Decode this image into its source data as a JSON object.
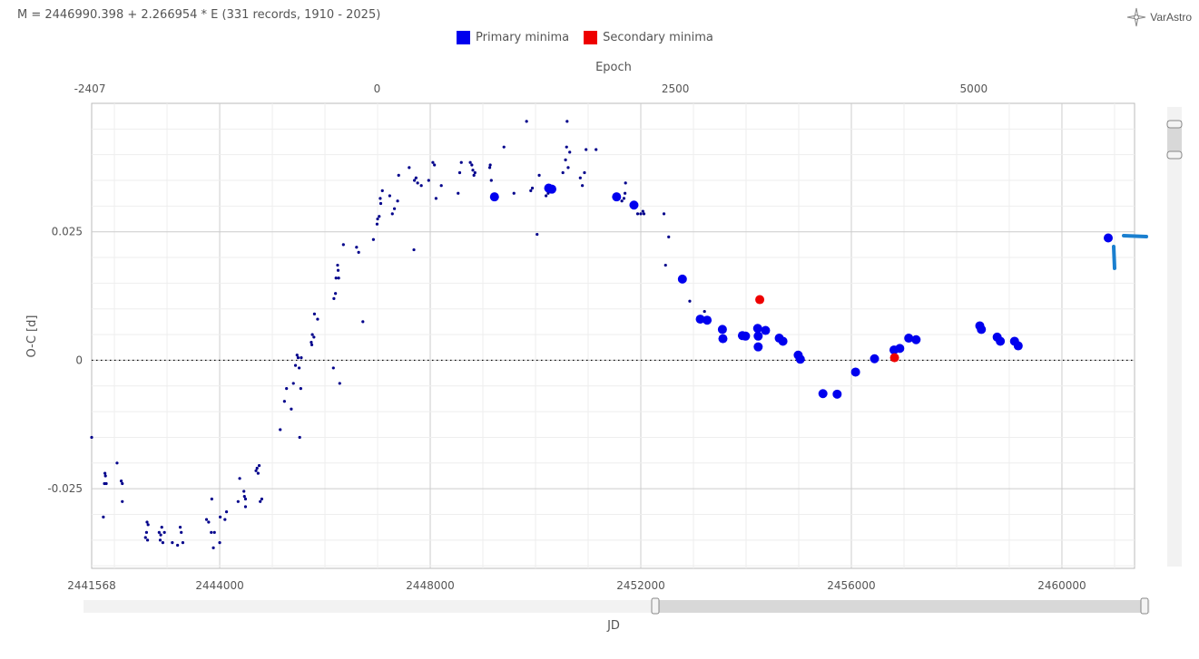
{
  "header": {
    "formula": "M = 2446990.398 + 2.266954 * E (331 records, 1910 - 2025)",
    "logo_text": "VarAstro"
  },
  "legend": [
    {
      "label": "Primary minima",
      "color": "#0000ee"
    },
    {
      "label": "Secondary minima",
      "color": "#ee0000"
    }
  ],
  "chart_data": {
    "type": "scatter",
    "xlabel": "JD",
    "ylabel": "O-C [d]",
    "x2label": "Epoch",
    "xlim": [
      2441568,
      2461380
    ],
    "ylim": [
      -0.0405,
      0.05
    ],
    "x_ticks": [
      2441568,
      2444000,
      2448000,
      2452000,
      2456000,
      2460000
    ],
    "y_ticks": [
      0.025,
      0,
      -0.025
    ],
    "epoch_ticks": [
      -2407,
      0,
      2500,
      5000
    ],
    "zero_line": true,
    "grid": true,
    "series": [
      {
        "name": "Primary minima",
        "color": "#0000ee",
        "small_points": [
          [
            2441568,
            -0.015
          ],
          [
            2441790,
            -0.0305
          ],
          [
            2441810,
            -0.024
          ],
          [
            2441820,
            -0.022
          ],
          [
            2441830,
            -0.0225
          ],
          [
            2441845,
            -0.024
          ],
          [
            2442050,
            -0.02
          ],
          [
            2442130,
            -0.0235
          ],
          [
            2442150,
            -0.024
          ],
          [
            2442150,
            -0.0275
          ],
          [
            2442590,
            -0.0345
          ],
          [
            2442610,
            -0.0335
          ],
          [
            2442620,
            -0.0315
          ],
          [
            2442630,
            -0.035
          ],
          [
            2442640,
            -0.032
          ],
          [
            2442850,
            -0.0335
          ],
          [
            2442870,
            -0.035
          ],
          [
            2442880,
            -0.034
          ],
          [
            2442900,
            -0.0325
          ],
          [
            2442920,
            -0.0355
          ],
          [
            2442950,
            -0.0335
          ],
          [
            2443100,
            -0.0355
          ],
          [
            2443200,
            -0.036
          ],
          [
            2443250,
            -0.0325
          ],
          [
            2443270,
            -0.0335
          ],
          [
            2443300,
            -0.0355
          ],
          [
            2443750,
            -0.031
          ],
          [
            2443790,
            -0.0315
          ],
          [
            2443840,
            -0.0335
          ],
          [
            2443850,
            -0.027
          ],
          [
            2443880,
            -0.0365
          ],
          [
            2443900,
            -0.0335
          ],
          [
            2444000,
            -0.0355
          ],
          [
            2444010,
            -0.0305
          ],
          [
            2444100,
            -0.031
          ],
          [
            2444130,
            -0.0295
          ],
          [
            2444350,
            -0.0275
          ],
          [
            2444380,
            -0.023
          ],
          [
            2444460,
            -0.0255
          ],
          [
            2444470,
            -0.0265
          ],
          [
            2444490,
            -0.027
          ],
          [
            2444490,
            -0.0285
          ],
          [
            2444690,
            -0.0215
          ],
          [
            2444710,
            -0.021
          ],
          [
            2444730,
            -0.022
          ],
          [
            2444750,
            -0.0205
          ],
          [
            2444770,
            -0.0275
          ],
          [
            2444800,
            -0.027
          ],
          [
            2445150,
            -0.0135
          ],
          [
            2445230,
            -0.008
          ],
          [
            2445270,
            -0.0055
          ],
          [
            2445360,
            -0.0095
          ],
          [
            2445400,
            -0.0045
          ],
          [
            2445440,
            -0.001
          ],
          [
            2445470,
            0.001
          ],
          [
            2445490,
            0.0005
          ],
          [
            2445510,
            -0.0015
          ],
          [
            2445520,
            -0.015
          ],
          [
            2445540,
            -0.0055
          ],
          [
            2445550,
            0.0005
          ],
          [
            2445740,
            0.0035
          ],
          [
            2445750,
            0.003
          ],
          [
            2445760,
            0.005
          ],
          [
            2445790,
            0.0045
          ],
          [
            2445800,
            0.009
          ],
          [
            2445860,
            0.008
          ],
          [
            2446160,
            -0.0015
          ],
          [
            2446170,
            0.012
          ],
          [
            2446200,
            0.013
          ],
          [
            2446210,
            0.016
          ],
          [
            2446240,
            0.0185
          ],
          [
            2446250,
            0.0175
          ],
          [
            2446260,
            0.016
          ],
          [
            2446280,
            -0.0045
          ],
          [
            2446350,
            0.0225
          ],
          [
            2446600,
            0.022
          ],
          [
            2446640,
            0.021
          ],
          [
            2446720,
            0.0075
          ],
          [
            2446920,
            0.0235
          ],
          [
            2446990,
            0.0265
          ],
          [
            2447000,
            0.0275
          ],
          [
            2447030,
            0.028
          ],
          [
            2447050,
            0.0315
          ],
          [
            2447060,
            0.0305
          ],
          [
            2447090,
            0.033
          ],
          [
            2447230,
            0.032
          ],
          [
            2447280,
            0.0285
          ],
          [
            2447320,
            0.0295
          ],
          [
            2447380,
            0.031
          ],
          [
            2447400,
            0.036
          ],
          [
            2447600,
            0.0375
          ],
          [
            2447690,
            0.0215
          ],
          [
            2447700,
            0.035
          ],
          [
            2447730,
            0.0355
          ],
          [
            2447760,
            0.0345
          ],
          [
            2447830,
            0.034
          ],
          [
            2447970,
            0.035
          ],
          [
            2448050,
            0.0385
          ],
          [
            2448080,
            0.038
          ],
          [
            2448110,
            0.0315
          ],
          [
            2448210,
            0.034
          ],
          [
            2448530,
            0.0325
          ],
          [
            2448560,
            0.0365
          ],
          [
            2448590,
            0.0385
          ],
          [
            2448760,
            0.0385
          ],
          [
            2448790,
            0.038
          ],
          [
            2448810,
            0.037
          ],
          [
            2448830,
            0.036
          ],
          [
            2448850,
            0.0365
          ],
          [
            2449130,
            0.0375
          ],
          [
            2449140,
            0.038
          ],
          [
            2449160,
            0.035
          ],
          [
            2449400,
            0.0415
          ],
          [
            2449590,
            0.0325
          ],
          [
            2449830,
            0.0465
          ],
          [
            2449910,
            0.033
          ],
          [
            2449940,
            0.0335
          ],
          [
            2450030,
            0.0245
          ],
          [
            2450070,
            0.036
          ],
          [
            2450200,
            0.032
          ],
          [
            2450240,
            0.0325
          ],
          [
            2450520,
            0.0365
          ],
          [
            2450570,
            0.039
          ],
          [
            2450590,
            0.0415
          ],
          [
            2450620,
            0.0375
          ],
          [
            2450650,
            0.0405
          ],
          [
            2450600,
            0.0465
          ],
          [
            2450850,
            0.0355
          ],
          [
            2450890,
            0.034
          ],
          [
            2450930,
            0.0365
          ],
          [
            2450960,
            0.041
          ],
          [
            2451150,
            0.041
          ],
          [
            2451640,
            0.031
          ],
          [
            2451680,
            0.0315
          ],
          [
            2451700,
            0.0325
          ],
          [
            2451710,
            0.0345
          ],
          [
            2451940,
            0.0285
          ],
          [
            2452000,
            0.0285
          ],
          [
            2452040,
            0.029
          ],
          [
            2452060,
            0.0285
          ],
          [
            2452440,
            0.0285
          ],
          [
            2452470,
            0.0185
          ],
          [
            2452530,
            0.024
          ],
          [
            2452930,
            0.0115
          ],
          [
            2453210,
            0.0095
          ]
        ],
        "large_points": [
          [
            2449220,
            0.0318
          ],
          [
            2450250,
            0.0335
          ],
          [
            2450310,
            0.0333
          ],
          [
            2451540,
            0.0318
          ],
          [
            2451870,
            0.0302
          ],
          [
            2452790,
            0.0158
          ],
          [
            2453130,
            0.008
          ],
          [
            2453260,
            0.0078
          ],
          [
            2453550,
            0.006
          ],
          [
            2453560,
            0.0042
          ],
          [
            2453930,
            0.0048
          ],
          [
            2453990,
            0.0047
          ],
          [
            2454220,
            0.0062
          ],
          [
            2454230,
            0.0047
          ],
          [
            2454230,
            0.0026
          ],
          [
            2454370,
            0.0058
          ],
          [
            2454630,
            0.0043
          ],
          [
            2454700,
            0.0037
          ],
          [
            2454990,
            0.001
          ],
          [
            2455030,
            0.0002
          ],
          [
            2455460,
            -0.0065
          ],
          [
            2455730,
            -0.0066
          ],
          [
            2456080,
            -0.0023
          ],
          [
            2456440,
            0.0003
          ],
          [
            2456810,
            0.002
          ],
          [
            2456920,
            0.0023
          ],
          [
            2457090,
            0.0043
          ],
          [
            2457230,
            0.004
          ],
          [
            2458440,
            0.0067
          ],
          [
            2458470,
            0.006
          ],
          [
            2458770,
            0.0045
          ],
          [
            2458830,
            0.0037
          ],
          [
            2459100,
            0.0037
          ],
          [
            2459170,
            0.0028
          ],
          [
            2460880,
            0.0238
          ]
        ]
      },
      {
        "name": "Secondary minima",
        "color": "#ee0000",
        "small_points": [],
        "large_points": [
          [
            2454260,
            0.0118
          ],
          [
            2456820,
            0.0005
          ]
        ]
      }
    ]
  }
}
